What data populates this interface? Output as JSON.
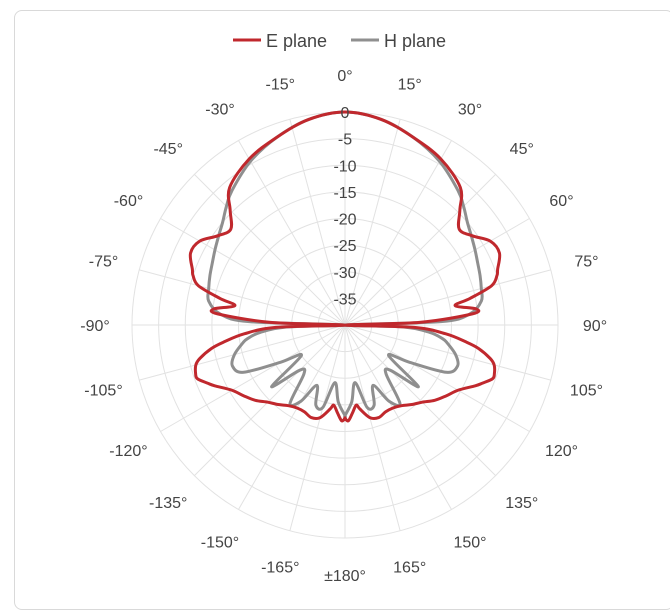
{
  "chart_data": {
    "type": "polar-line",
    "title": "",
    "legend_position": "top",
    "grid": true,
    "radial_range": [
      -40,
      0
    ],
    "radial_ticks": [
      {
        "value": 0,
        "label": "0"
      },
      {
        "value": -5,
        "label": "-5"
      },
      {
        "value": -10,
        "label": "-10"
      },
      {
        "value": -15,
        "label": "-15"
      },
      {
        "value": -20,
        "label": "-20"
      },
      {
        "value": -25,
        "label": "-25"
      },
      {
        "value": -30,
        "label": "-30"
      },
      {
        "value": -35,
        "label": "-35"
      }
    ],
    "angle_ticks": [
      {
        "angle": 0,
        "label": "0°"
      },
      {
        "angle": 15,
        "label": "15°"
      },
      {
        "angle": 30,
        "label": "30°"
      },
      {
        "angle": 45,
        "label": "45°"
      },
      {
        "angle": 60,
        "label": "60°"
      },
      {
        "angle": 75,
        "label": "75°"
      },
      {
        "angle": 90,
        "label": "90°"
      },
      {
        "angle": 105,
        "label": "105°"
      },
      {
        "angle": 120,
        "label": "120°"
      },
      {
        "angle": 135,
        "label": "135°"
      },
      {
        "angle": 150,
        "label": "150°"
      },
      {
        "angle": 165,
        "label": "165°"
      },
      {
        "angle": 180,
        "label": "±180°"
      },
      {
        "angle": -165,
        "label": "-165°"
      },
      {
        "angle": -150,
        "label": "-150°"
      },
      {
        "angle": -135,
        "label": "-135°"
      },
      {
        "angle": -120,
        "label": "-120°"
      },
      {
        "angle": -105,
        "label": "-105°"
      },
      {
        "angle": -90,
        "label": "-90°"
      },
      {
        "angle": -75,
        "label": "-75°"
      },
      {
        "angle": -60,
        "label": "-60°"
      },
      {
        "angle": -45,
        "label": "-45°"
      },
      {
        "angle": -30,
        "label": "-30°"
      },
      {
        "angle": -15,
        "label": "-15°"
      }
    ],
    "series": [
      {
        "name": "E plane",
        "color": "#c0282d",
        "angles": [
          0,
          10,
          20,
          30,
          40,
          45,
          50,
          55,
          60,
          65,
          70,
          72,
          75,
          78,
          80,
          83,
          85,
          88,
          90,
          92,
          95,
          98,
          100,
          103,
          105,
          108,
          110,
          113,
          115,
          120,
          125,
          130,
          135,
          140,
          145,
          150,
          155,
          160,
          165,
          170,
          172,
          175,
          178,
          180
        ],
        "values": [
          0,
          -0.8,
          -2.5,
          -4,
          -6.3,
          -9.5,
          -12,
          -10.8,
          -8.5,
          -8,
          -9.5,
          -10,
          -11.5,
          -16,
          -19,
          -15.2,
          -16,
          -26,
          -40,
          -27,
          -21,
          -17,
          -14.5,
          -12,
          -11,
          -10.5,
          -10.5,
          -12,
          -13,
          -15.5,
          -16.8,
          -18,
          -19.5,
          -20.5,
          -21.5,
          -22,
          -22,
          -21.5,
          -22,
          -24,
          -24.8,
          -23.5,
          -22,
          -22.5
        ]
      },
      {
        "name": "H plane",
        "color": "#8f8f8f",
        "angles": [
          0,
          10,
          20,
          30,
          40,
          45,
          50,
          55,
          60,
          65,
          70,
          75,
          80,
          85,
          88,
          90,
          92,
          95,
          98,
          100,
          105,
          110,
          115,
          120,
          125,
          130,
          135,
          140,
          145,
          150,
          155,
          160,
          165,
          170,
          175,
          180
        ],
        "values": [
          0,
          -0.8,
          -2.5,
          -4.5,
          -7,
          -8.5,
          -10,
          -11,
          -11.8,
          -12.5,
          -13,
          -13.5,
          -14,
          -16.5,
          -22,
          -40,
          -29,
          -24,
          -21.5,
          -20.5,
          -18.5,
          -17.5,
          -19,
          -26,
          -30,
          -22,
          -28,
          -28,
          -22,
          -23.5,
          -27.5,
          -24,
          -24,
          -29,
          -25.5,
          -23
        ]
      }
    ]
  }
}
